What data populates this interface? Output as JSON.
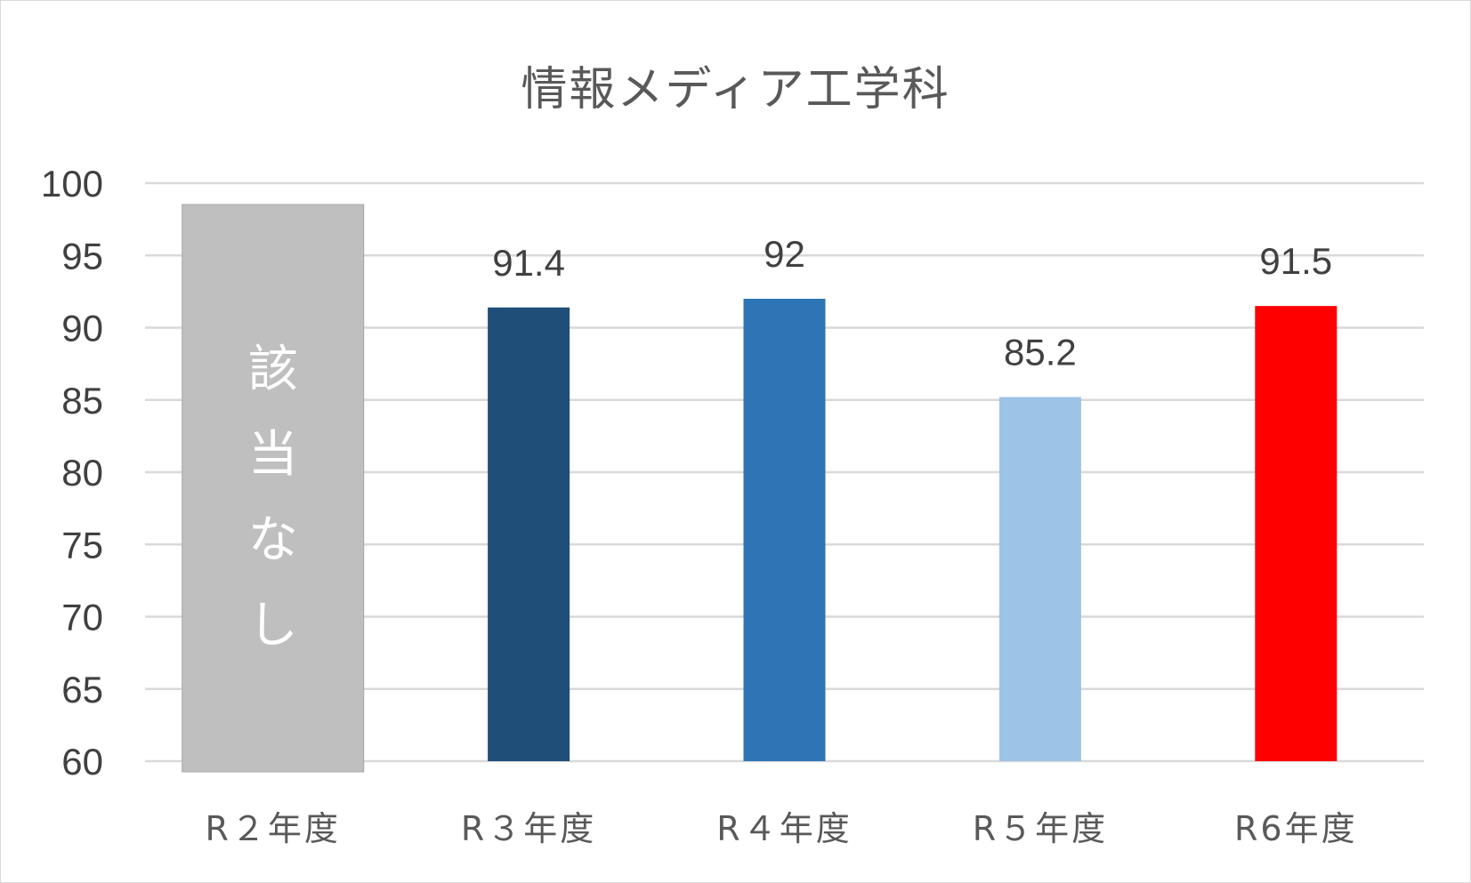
{
  "chart_data": {
    "type": "bar",
    "title": "情報メディア工学科",
    "categories": [
      "R２年度",
      "R３年度",
      "R４年度",
      "R５年度",
      "R6年度"
    ],
    "values": [
      null,
      91.4,
      92,
      85.2,
      91.5
    ],
    "data_labels": [
      "",
      "91.4",
      "92",
      "85.2",
      "91.5"
    ],
    "bar_colors": [
      "#bfbfbf",
      "#1f4e79",
      "#2e75b6",
      "#9dc3e6",
      "#ff0000"
    ],
    "not_applicable": {
      "category_index": 0,
      "label_chars": [
        "該",
        "当",
        "な",
        "し"
      ],
      "color": "#bfbfbf"
    },
    "ylim": [
      60,
      100
    ],
    "yticks": [
      "60",
      "65",
      "70",
      "75",
      "80",
      "85",
      "90",
      "95",
      "100"
    ],
    "ytick_values": [
      60,
      65,
      70,
      75,
      80,
      85,
      90,
      95,
      100
    ],
    "grid": true,
    "legend": "none",
    "xlabel": "",
    "ylabel": ""
  }
}
